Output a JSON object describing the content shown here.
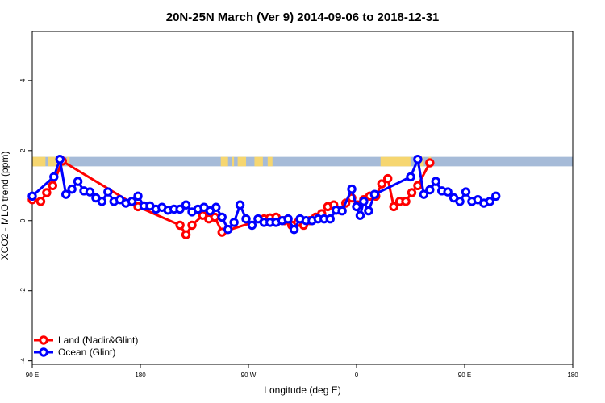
{
  "chart_data": {
    "type": "line",
    "title": "20N-25N March (Ver 9)   2014-09-06 to 2018-12-31",
    "xlabel": "Longitude (deg E)",
    "ylabel": "XCO2 - MLO trend (ppm)",
    "x_tick_labels": [
      "90 E",
      "180",
      "90 W",
      "0",
      "90 E",
      "180"
    ],
    "y_tick_labels": [
      "-4",
      "-2",
      "0",
      "2",
      "4"
    ],
    "y_ticks": [
      -4,
      -2,
      0,
      2,
      4
    ],
    "xlim": [
      90,
      540
    ],
    "ylim": [
      -4.1,
      5.4
    ],
    "grid": false,
    "legend_position": "bottom-left",
    "series": [
      {
        "name": "Land (Nadir&Glint)",
        "color": "#ff0000",
        "points": [
          [
            90,
            0.6
          ],
          [
            97,
            0.55
          ],
          [
            102,
            0.8
          ],
          [
            107,
            1.0
          ],
          [
            115,
            1.7
          ],
          [
            178,
            0.4
          ],
          [
            213,
            -0.13
          ],
          [
            218,
            -0.4
          ],
          [
            223,
            -0.13
          ],
          [
            232,
            0.15
          ],
          [
            237,
            0.05
          ],
          [
            242,
            0.1
          ],
          [
            248,
            -0.33
          ],
          [
            283,
            0.05
          ],
          [
            288,
            0.08
          ],
          [
            293,
            0.1
          ],
          [
            300,
            0.0
          ],
          [
            306,
            -0.13
          ],
          [
            311,
            -0.05
          ],
          [
            316,
            -0.13
          ],
          [
            321,
            0.0
          ],
          [
            326,
            0.1
          ],
          [
            331,
            0.2
          ],
          [
            336,
            0.4
          ],
          [
            341,
            0.45
          ],
          [
            346,
            0.3
          ],
          [
            351,
            0.5
          ],
          [
            356,
            0.65
          ],
          [
            361,
            0.45
          ],
          [
            366,
            0.6
          ],
          [
            371,
            0.7
          ],
          [
            376,
            0.7
          ],
          [
            381,
            1.05
          ],
          [
            386,
            1.2
          ],
          [
            391,
            0.4
          ],
          [
            396,
            0.55
          ],
          [
            401,
            0.55
          ],
          [
            406,
            0.8
          ],
          [
            411,
            1.0
          ],
          [
            421,
            1.65
          ]
        ]
      },
      {
        "name": "Ocean (Glint)",
        "color": "#0000ff",
        "points": [
          [
            90,
            0.7
          ],
          [
            108,
            1.25
          ],
          [
            113,
            1.75
          ],
          [
            118,
            0.75
          ],
          [
            123,
            0.9
          ],
          [
            128,
            1.12
          ],
          [
            133,
            0.85
          ],
          [
            138,
            0.82
          ],
          [
            143,
            0.65
          ],
          [
            148,
            0.55
          ],
          [
            153,
            0.82
          ],
          [
            158,
            0.55
          ],
          [
            163,
            0.6
          ],
          [
            168,
            0.5
          ],
          [
            173,
            0.55
          ],
          [
            178,
            0.7
          ],
          [
            183,
            0.42
          ],
          [
            188,
            0.42
          ],
          [
            193,
            0.33
          ],
          [
            198,
            0.38
          ],
          [
            203,
            0.3
          ],
          [
            208,
            0.33
          ],
          [
            213,
            0.33
          ],
          [
            218,
            0.45
          ],
          [
            223,
            0.25
          ],
          [
            228,
            0.33
          ],
          [
            233,
            0.38
          ],
          [
            238,
            0.28
          ],
          [
            243,
            0.38
          ],
          [
            248,
            0.1
          ],
          [
            253,
            -0.25
          ],
          [
            258,
            -0.05
          ],
          [
            263,
            0.45
          ],
          [
            268,
            0.05
          ],
          [
            273,
            -0.13
          ],
          [
            278,
            0.05
          ],
          [
            283,
            -0.05
          ],
          [
            288,
            -0.05
          ],
          [
            293,
            -0.05
          ],
          [
            298,
            0.0
          ],
          [
            303,
            0.05
          ],
          [
            308,
            -0.25
          ],
          [
            313,
            0.05
          ],
          [
            318,
            0.0
          ],
          [
            323,
            0.0
          ],
          [
            328,
            0.05
          ],
          [
            333,
            0.05
          ],
          [
            338,
            0.05
          ],
          [
            343,
            0.3
          ],
          [
            348,
            0.28
          ],
          [
            356,
            0.9
          ],
          [
            360,
            0.4
          ],
          [
            363,
            0.15
          ],
          [
            366,
            0.55
          ],
          [
            370,
            0.28
          ],
          [
            375,
            0.75
          ],
          [
            405,
            1.25
          ],
          [
            411,
            1.75
          ],
          [
            416,
            0.75
          ],
          [
            421,
            0.88
          ],
          [
            426,
            1.12
          ],
          [
            431,
            0.85
          ],
          [
            436,
            0.82
          ],
          [
            441,
            0.65
          ],
          [
            446,
            0.55
          ],
          [
            451,
            0.82
          ],
          [
            456,
            0.55
          ],
          [
            461,
            0.6
          ],
          [
            466,
            0.5
          ],
          [
            471,
            0.55
          ],
          [
            476,
            0.7
          ]
        ]
      }
    ],
    "map_strip": {
      "y_range": [
        1.55,
        1.82
      ],
      "ocean_color": "#a6bbd8",
      "land_color": "#f6d670",
      "land_segments": [
        [
          90,
          101
        ],
        [
          103,
          116
        ],
        [
          119,
          121
        ],
        [
          247,
          253
        ],
        [
          256,
          258
        ],
        [
          261,
          268
        ],
        [
          275,
          282
        ],
        [
          286,
          290
        ],
        [
          380,
          405
        ],
        [
          411,
          416
        ],
        [
          420,
          422
        ]
      ]
    }
  }
}
